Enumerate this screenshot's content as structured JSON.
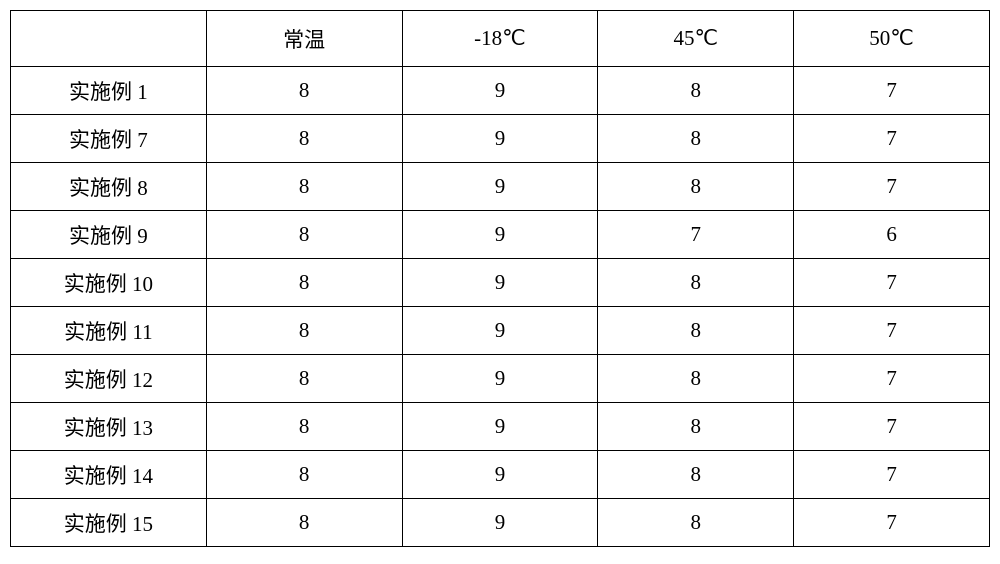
{
  "table": {
    "type": "table",
    "columns": [
      "",
      "常温",
      "-18℃",
      "45℃",
      "50℃"
    ],
    "rows": [
      [
        "实施例 1",
        "8",
        "9",
        "8",
        "7"
      ],
      [
        "实施例 7",
        "8",
        "9",
        "8",
        "7"
      ],
      [
        "实施例 8",
        "8",
        "9",
        "8",
        "7"
      ],
      [
        "实施例 9",
        "8",
        "9",
        "7",
        "6"
      ],
      [
        "实施例 10",
        "8",
        "9",
        "8",
        "7"
      ],
      [
        "实施例 11",
        "8",
        "9",
        "8",
        "7"
      ],
      [
        "实施例 12",
        "8",
        "9",
        "8",
        "7"
      ],
      [
        "实施例 13",
        "8",
        "9",
        "8",
        "7"
      ],
      [
        "实施例 14",
        "8",
        "9",
        "8",
        "7"
      ],
      [
        "实施例 15",
        "8",
        "9",
        "8",
        "7"
      ]
    ],
    "border_color": "#000000",
    "background_color": "#ffffff",
    "text_color": "#000000",
    "font_size": 21,
    "header_row_height": 56,
    "data_row_height": 48
  }
}
